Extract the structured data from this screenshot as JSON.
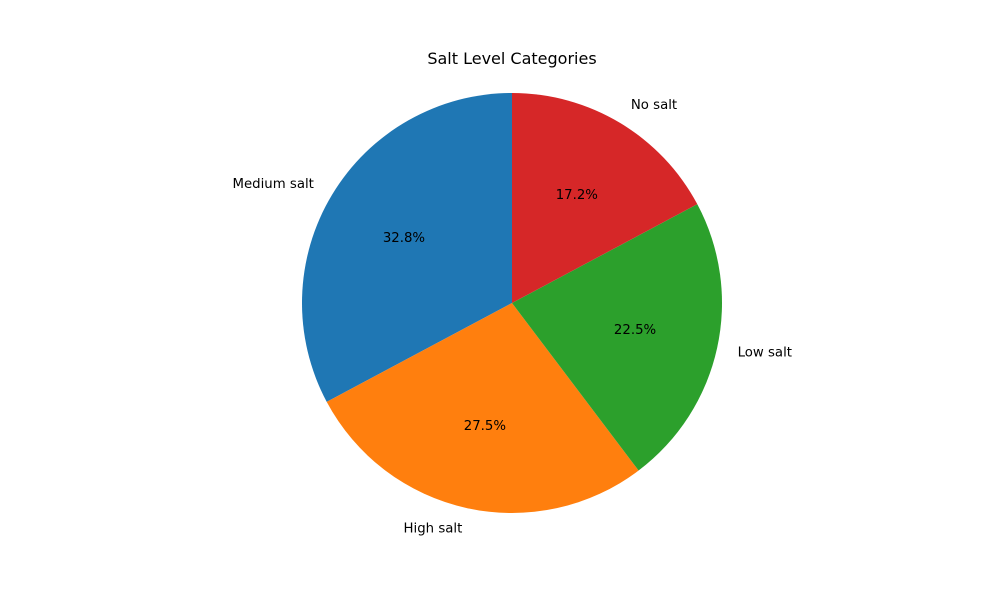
{
  "chart_data": {
    "type": "pie",
    "title": "Salt Level Categories",
    "start_angle_deg": 90,
    "direction": "counterclockwise",
    "slices": [
      {
        "label": "Medium salt",
        "value": 32.8,
        "pct_label": "32.8%",
        "color": "#1f77b4"
      },
      {
        "label": "High salt",
        "value": 27.5,
        "pct_label": "27.5%",
        "color": "#ff7f0e"
      },
      {
        "label": "Low salt",
        "value": 22.5,
        "pct_label": "22.5%",
        "color": "#2ca02c"
      },
      {
        "label": "No salt",
        "value": 17.2,
        "pct_label": "17.2%",
        "color": "#d62728"
      }
    ]
  }
}
